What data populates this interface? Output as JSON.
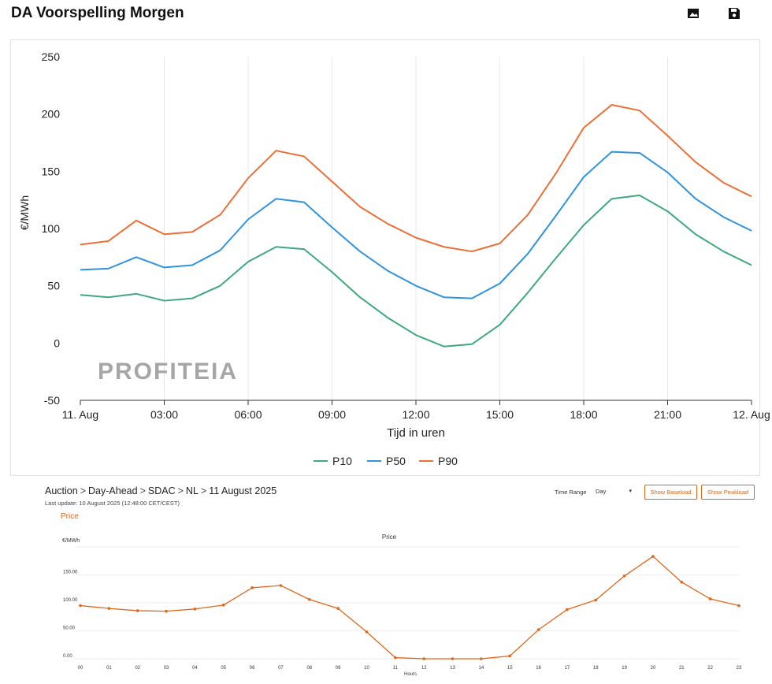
{
  "header": {
    "title": "DA Voorspelling Morgen",
    "image_icon": "image-icon",
    "save_icon": "save-icon"
  },
  "watermark": "PROFITEIA",
  "breadcrumb": [
    "Auction",
    "Day-Ahead",
    "SDAC",
    "NL",
    "11 August 2025"
  ],
  "last_update": "Last update: 10 August 2025 (12:48:00 CET/CEST)",
  "price_tab": "Price",
  "controls": {
    "time_range_label": "Time Range",
    "time_range_value": "Day",
    "baseload_button": "Show Baseload",
    "peakload_button": "Show Peakload"
  },
  "chart_data": [
    {
      "type": "line",
      "title": "DA Voorspelling Morgen",
      "xlabel": "Tijd in uren",
      "ylabel": "€/MWh",
      "ylim": [
        -50,
        250
      ],
      "yticks": [
        -50,
        0,
        50,
        100,
        150,
        200,
        250
      ],
      "xlim": [
        0,
        24
      ],
      "xticks": [
        {
          "x": 0,
          "label": "11. Aug"
        },
        {
          "x": 3,
          "label": "03:00"
        },
        {
          "x": 6,
          "label": "06:00"
        },
        {
          "x": 9,
          "label": "09:00"
        },
        {
          "x": 12,
          "label": "12:00"
        },
        {
          "x": 15,
          "label": "15:00"
        },
        {
          "x": 18,
          "label": "18:00"
        },
        {
          "x": 21,
          "label": "21:00"
        },
        {
          "x": 24,
          "label": "12. Aug"
        }
      ],
      "legend": "bottom",
      "grid": "vertical",
      "x": [
        0,
        1,
        2,
        3,
        4,
        5,
        6,
        7,
        8,
        9,
        10,
        11,
        12,
        13,
        14,
        15,
        16,
        17,
        18,
        19,
        20,
        21,
        22,
        23,
        24
      ],
      "series": [
        {
          "name": "P10",
          "color": "#3ea87f",
          "values": [
            42,
            40,
            43,
            37,
            39,
            50,
            71,
            84,
            82,
            62,
            40,
            22,
            7,
            -3,
            -1,
            16,
            44,
            74,
            103,
            126,
            129,
            115,
            95,
            80,
            68
          ]
        },
        {
          "name": "P50",
          "color": "#2e93e0",
          "values": [
            64,
            65,
            75,
            66,
            68,
            81,
            108,
            126,
            123,
            101,
            80,
            63,
            50,
            40,
            39,
            52,
            78,
            111,
            145,
            167,
            166,
            149,
            126,
            110,
            98
          ]
        },
        {
          "name": "P90",
          "color": "#ec6f36",
          "values": [
            86,
            89,
            107,
            95,
            97,
            112,
            144,
            168,
            163,
            141,
            119,
            104,
            92,
            84,
            80,
            87,
            112,
            148,
            188,
            208,
            203,
            181,
            158,
            140,
            128
          ]
        }
      ]
    },
    {
      "type": "line",
      "title": "Price",
      "xlabel": "Hours",
      "ylabel": "€/MWh",
      "ylim": [
        0,
        200
      ],
      "yticks": [
        {
          "v": 0,
          "label": "0.00"
        },
        {
          "v": 50,
          "label": "50.00"
        },
        {
          "v": 100,
          "label": "100.00"
        },
        {
          "v": 150,
          "label": "150.00"
        }
      ],
      "categories": [
        "00",
        "01",
        "02",
        "03",
        "04",
        "05",
        "06",
        "07",
        "08",
        "09",
        "10",
        "11",
        "12",
        "13",
        "14",
        "15",
        "16",
        "17",
        "18",
        "19",
        "20",
        "21",
        "22",
        "23"
      ],
      "series": [
        {
          "name": "Price",
          "color": "#e0661a",
          "values": [
            95,
            90,
            86,
            85,
            89,
            96,
            127,
            131,
            106,
            90,
            48,
            2,
            0,
            0,
            0,
            5,
            52,
            88,
            105,
            148,
            183,
            137,
            107,
            95
          ]
        }
      ]
    }
  ]
}
